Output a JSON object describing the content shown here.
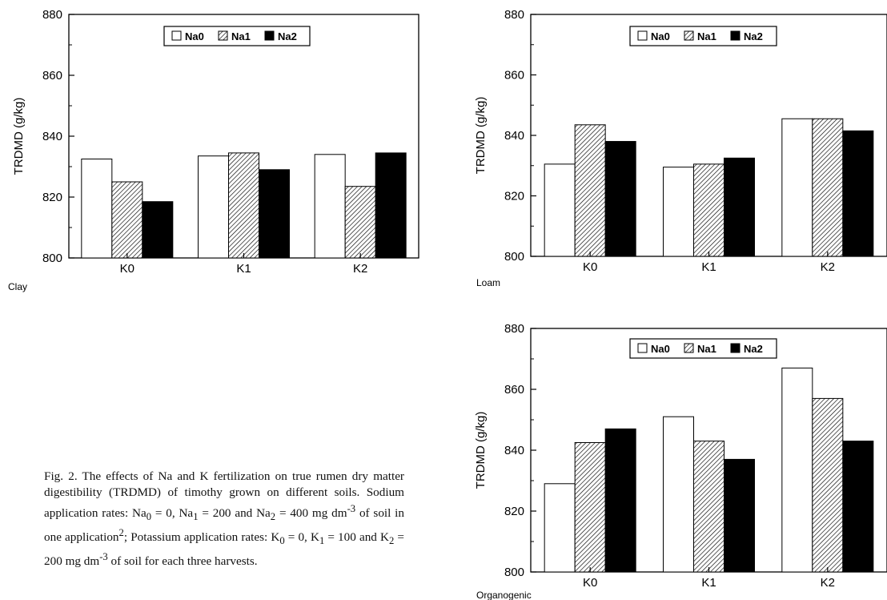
{
  "chart_data": [
    {
      "type": "bar",
      "panel_label": "Clay",
      "ylabel": "TRDMD (g/kg)",
      "ylim": [
        800,
        880
      ],
      "yticks": [
        "800",
        "820",
        "840",
        "860",
        "880"
      ],
      "categories": [
        "K0",
        "K1",
        "K2"
      ],
      "series": [
        {
          "name": "Na0",
          "values": [
            832.5,
            833.5,
            834
          ]
        },
        {
          "name": "Na1",
          "values": [
            825,
            834.5,
            823.5
          ]
        },
        {
          "name": "Na2",
          "values": [
            818.5,
            829,
            834.5
          ]
        }
      ],
      "legend_position": "top-center"
    },
    {
      "type": "bar",
      "panel_label": "Loam",
      "ylabel": "TRDMD (g/kg)",
      "ylim": [
        800,
        880
      ],
      "yticks": [
        "800",
        "820",
        "840",
        "860",
        "880"
      ],
      "categories": [
        "K0",
        "K1",
        "K2"
      ],
      "series": [
        {
          "name": "Na0",
          "values": [
            830.5,
            829.5,
            845.5
          ]
        },
        {
          "name": "Na1",
          "values": [
            843.5,
            830.5,
            845.5
          ]
        },
        {
          "name": "Na2",
          "values": [
            838,
            832.5,
            841.5
          ]
        }
      ],
      "legend_position": "top-center"
    },
    {
      "type": "bar",
      "panel_label": "Organogenic",
      "ylabel": "TRDMD (g/kg)",
      "ylim": [
        800,
        880
      ],
      "yticks": [
        "800",
        "820",
        "840",
        "860",
        "880"
      ],
      "categories": [
        "K0",
        "K1",
        "K2"
      ],
      "series": [
        {
          "name": "Na0",
          "values": [
            829,
            851,
            867
          ]
        },
        {
          "name": "Na1",
          "values": [
            842.5,
            843,
            857
          ]
        },
        {
          "name": "Na2",
          "values": [
            847,
            837,
            843
          ]
        }
      ],
      "legend_position": "top-center"
    }
  ],
  "caption": "Fig. 2. The effects of Na and K fertilization on true rumen dry matter digestibility (TRDMD) of timothy grown on different soils. Sodium application rates: Na0 = 0, Na1 = 200 and Na2 = 400 mg dm-3 of soil in one application2; Potassium application rates: K0 = 0, K1 = 100 and K2 = 200 mg dm-3 of soil for each three harvests."
}
